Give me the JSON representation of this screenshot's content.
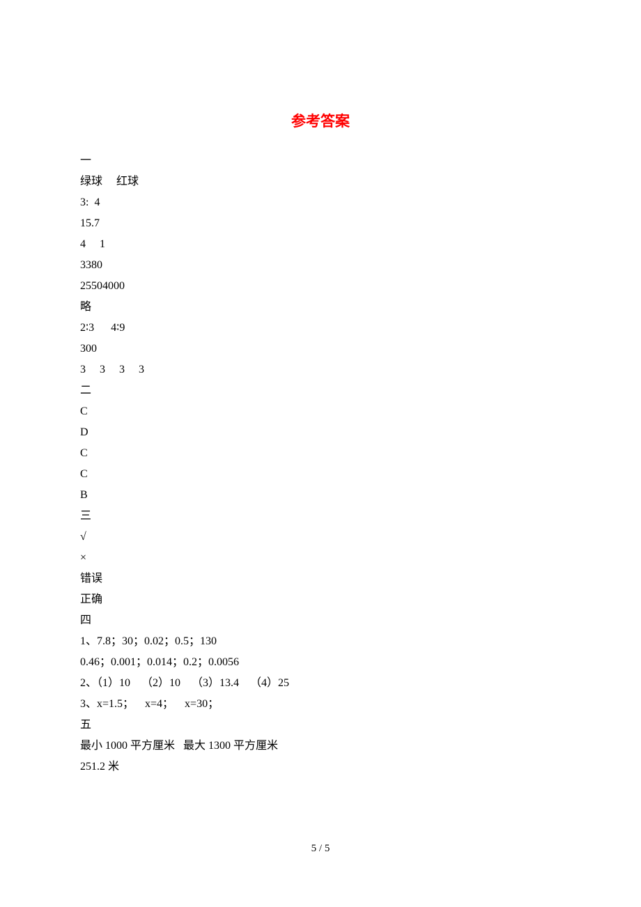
{
  "title": "参考答案",
  "sections": {
    "section1_header": "一",
    "section1_lines": [
      "绿球     红球",
      "3:  4",
      "15.7",
      "4     1",
      "3380",
      "25504000",
      "略",
      "2∶3      4∶9",
      "300",
      "3     3     3     3"
    ],
    "section2_header": "二",
    "section2_lines": [
      "C",
      "D",
      "C",
      "C",
      "B"
    ],
    "section3_header": "三",
    "section3_lines": [
      "√",
      "×",
      "错误",
      "正确"
    ],
    "section4_header": "四",
    "section4_lines": [
      "1、7.8；30；0.02；0.5；130",
      "0.46；0.001；0.014；0.2；0.0056",
      "2、（1）10    （2）10    （3）13.4    （4）25",
      "3、x=1.5；    x=4；    x=30；"
    ],
    "section5_header": "五",
    "section5_lines": [
      "最小 1000 平方厘米   最大 1300 平方厘米",
      "251.2 米"
    ]
  },
  "pageNumber": "5 / 5",
  "colors": {
    "title_color": "#ff0000",
    "text_color": "#000000",
    "background": "#ffffff"
  },
  "typography": {
    "title_fontsize": 21,
    "body_fontsize": 16,
    "line_height": 30
  }
}
